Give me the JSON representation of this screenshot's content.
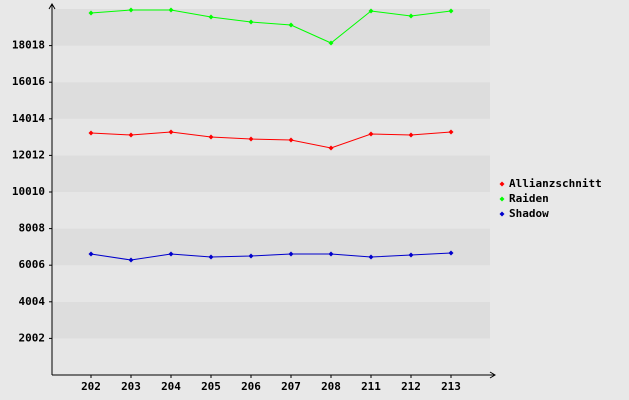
{
  "chart_data": {
    "type": "line",
    "categories": [
      "202",
      "203",
      "204",
      "205",
      "206",
      "207",
      "208",
      "211",
      "212",
      "213"
    ],
    "series": [
      {
        "name": "Allianzschnitt",
        "color": "#ff0000",
        "values": [
          13237,
          13128,
          13292,
          13018,
          12909,
          12854,
          12417,
          13183,
          13128,
          13292
        ]
      },
      {
        "name": "Raiden",
        "color": "#00ff00",
        "values": [
          19801,
          19965,
          19965,
          19582,
          19309,
          19145,
          18160,
          19910,
          19637,
          19910
        ]
      },
      {
        "name": "Shadow",
        "color": "#0000cc",
        "values": [
          6619,
          6290,
          6619,
          6455,
          6510,
          6619,
          6619,
          6455,
          6564,
          6673
        ]
      }
    ],
    "ylim": [
      0,
      20020
    ],
    "yticks": [
      2002,
      4004,
      6006,
      8008,
      10010,
      12012,
      14014,
      16016,
      18018
    ],
    "grid": true,
    "legend": "right"
  }
}
